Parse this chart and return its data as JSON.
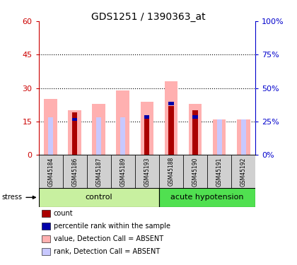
{
  "title": "GDS1251 / 1390363_at",
  "samples": [
    "GSM45184",
    "GSM45186",
    "GSM45187",
    "GSM45189",
    "GSM45193",
    "GSM45188",
    "GSM45190",
    "GSM45191",
    "GSM45192"
  ],
  "pink_bars": [
    25,
    20,
    23,
    29,
    24,
    33,
    23,
    16,
    16
  ],
  "red_bars": [
    0,
    19,
    0,
    0,
    18,
    22,
    20,
    0,
    0
  ],
  "blue_bars": [
    17,
    16,
    17,
    17,
    17,
    23,
    17,
    0,
    0
  ],
  "lavender_bars": [
    17,
    0,
    17,
    17,
    17,
    0,
    17,
    16,
    16
  ],
  "ylim_left": [
    0,
    60
  ],
  "ylim_right": [
    0,
    100
  ],
  "yticks_left": [
    0,
    15,
    30,
    45,
    60
  ],
  "yticks_right": [
    0,
    25,
    50,
    75,
    100
  ],
  "ytick_labels_left": [
    "0",
    "15",
    "30",
    "45",
    "60"
  ],
  "ytick_labels_right": [
    "0%",
    "25%",
    "50%",
    "75%",
    "100%"
  ],
  "legend": [
    {
      "label": "count",
      "color": "#aa0000"
    },
    {
      "label": "percentile rank within the sample",
      "color": "#0000aa"
    },
    {
      "label": "value, Detection Call = ABSENT",
      "color": "#ffb0b0"
    },
    {
      "label": "rank, Detection Call = ABSENT",
      "color": "#c8c8ff"
    }
  ],
  "control_color": "#c8f0a0",
  "hypotension_color": "#50e050",
  "sample_bg_color": "#d0d0d0",
  "red_axis_color": "#cc0000",
  "blue_axis_color": "#0000cc"
}
